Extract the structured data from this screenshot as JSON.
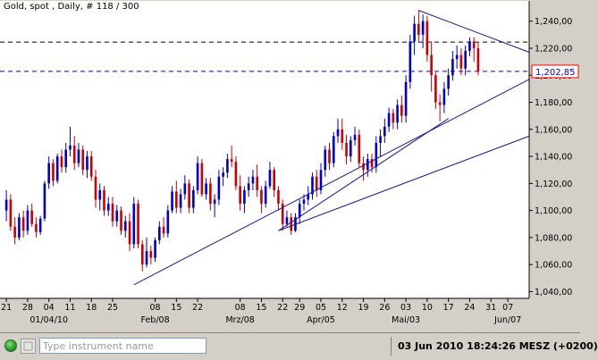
{
  "window": {
    "title": "Gold, spot , Daily, # 118 / 300"
  },
  "chart_data": {
    "type": "candlestick",
    "title": "Gold, spot , Daily, # 118 / 300",
    "ylim": [
      1.035,
      1.255
    ],
    "y_ticks": [
      "1,240,00",
      "1,220,00",
      "1,200,00",
      "1,180,00",
      "1,160,00",
      "1,140,00",
      "1,120,00",
      "1,100,00",
      "1,080,00",
      "1,060,00",
      "1,040,00"
    ],
    "y_tick_values": [
      1.24,
      1.22,
      1.2,
      1.18,
      1.16,
      1.14,
      1.12,
      1.1,
      1.08,
      1.06,
      1.04
    ],
    "x_tick_labels": [
      "21",
      "28",
      "04",
      "11",
      "18",
      "25",
      "08",
      "15",
      "22",
      "08",
      "15",
      "22",
      "29",
      "05",
      "12",
      "19",
      "26",
      "03",
      "10",
      "17",
      "24",
      "31",
      "07"
    ],
    "x_tick_index": [
      0,
      5,
      10,
      15,
      20,
      25,
      35,
      40,
      45,
      55,
      60,
      65,
      69,
      74,
      79,
      84,
      89,
      94,
      99,
      104,
      109,
      114,
      118
    ],
    "x_period_labels": [
      {
        "label": "01/04/10",
        "index": 10
      },
      {
        "label": "Feb/08",
        "index": 35
      },
      {
        "label": "Mrz/08",
        "index": 55
      },
      {
        "label": "Apr/05",
        "index": 74
      },
      {
        "label": "Mai/03",
        "index": 94
      },
      {
        "label": "Jun/07",
        "index": 118
      }
    ],
    "index_range": [
      -1.5,
      123
    ],
    "candles": [
      [
        1.1,
        1.115,
        1.092,
        1.108
      ],
      [
        1.108,
        1.112,
        1.085,
        1.088
      ],
      [
        1.088,
        1.095,
        1.075,
        1.08
      ],
      [
        1.08,
        1.098,
        1.078,
        1.095
      ],
      [
        1.095,
        1.1,
        1.08,
        1.085
      ],
      [
        1.085,
        1.104,
        1.082,
        1.1
      ],
      [
        1.1,
        1.105,
        1.088,
        1.09
      ],
      [
        1.09,
        1.095,
        1.08,
        1.084
      ],
      [
        1.084,
        1.096,
        1.082,
        1.094
      ],
      [
        1.094,
        1.122,
        1.092,
        1.12
      ],
      [
        1.12,
        1.14,
        1.116,
        1.135
      ],
      [
        1.135,
        1.138,
        1.118,
        1.122
      ],
      [
        1.122,
        1.142,
        1.12,
        1.14
      ],
      [
        1.14,
        1.145,
        1.128,
        1.132
      ],
      [
        1.132,
        1.15,
        1.128,
        1.145
      ],
      [
        1.145,
        1.162,
        1.14,
        1.148
      ],
      [
        1.148,
        1.155,
        1.13,
        1.135
      ],
      [
        1.135,
        1.15,
        1.132,
        1.145
      ],
      [
        1.145,
        1.148,
        1.126,
        1.13
      ],
      [
        1.13,
        1.144,
        1.124,
        1.14
      ],
      [
        1.14,
        1.144,
        1.122,
        1.125
      ],
      [
        1.125,
        1.13,
        1.102,
        1.108
      ],
      [
        1.108,
        1.12,
        1.1,
        1.115
      ],
      [
        1.115,
        1.118,
        1.096,
        1.1
      ],
      [
        1.1,
        1.11,
        1.096,
        1.105
      ],
      [
        1.105,
        1.11,
        1.088,
        1.092
      ],
      [
        1.092,
        1.104,
        1.088,
        1.1
      ],
      [
        1.1,
        1.103,
        1.082,
        1.085
      ],
      [
        1.085,
        1.096,
        1.08,
        1.092
      ],
      [
        1.092,
        1.098,
        1.07,
        1.075
      ],
      [
        1.075,
        1.11,
        1.072,
        1.105
      ],
      [
        1.105,
        1.108,
        1.072,
        1.075
      ],
      [
        1.075,
        1.078,
        1.055,
        1.06
      ],
      [
        1.06,
        1.08,
        1.058,
        1.07
      ],
      [
        1.07,
        1.074,
        1.06,
        1.065
      ],
      [
        1.065,
        1.08,
        1.062,
        1.078
      ],
      [
        1.078,
        1.092,
        1.075,
        1.088
      ],
      [
        1.088,
        1.095,
        1.08,
        1.083
      ],
      [
        1.083,
        1.104,
        1.08,
        1.1
      ],
      [
        1.1,
        1.118,
        1.098,
        1.114
      ],
      [
        1.114,
        1.122,
        1.098,
        1.102
      ],
      [
        1.102,
        1.116,
        1.098,
        1.112
      ],
      [
        1.112,
        1.126,
        1.108,
        1.12
      ],
      [
        1.12,
        1.123,
        1.098,
        1.102
      ],
      [
        1.102,
        1.118,
        1.098,
        1.115
      ],
      [
        1.115,
        1.14,
        1.112,
        1.135
      ],
      [
        1.135,
        1.138,
        1.11,
        1.112
      ],
      [
        1.112,
        1.124,
        1.108,
        1.12
      ],
      [
        1.12,
        1.124,
        1.1,
        1.105
      ],
      [
        1.105,
        1.112,
        1.095,
        1.108
      ],
      [
        1.108,
        1.13,
        1.104,
        1.125
      ],
      [
        1.125,
        1.132,
        1.118,
        1.128
      ],
      [
        1.128,
        1.142,
        1.124,
        1.138
      ],
      [
        1.138,
        1.148,
        1.132,
        1.136
      ],
      [
        1.136,
        1.14,
        1.115,
        1.118
      ],
      [
        1.118,
        1.126,
        1.1,
        1.105
      ],
      [
        1.105,
        1.118,
        1.098,
        1.115
      ],
      [
        1.115,
        1.125,
        1.11,
        1.12
      ],
      [
        1.12,
        1.13,
        1.115,
        1.125
      ],
      [
        1.125,
        1.134,
        1.11,
        1.115
      ],
      [
        1.115,
        1.118,
        1.098,
        1.105
      ],
      [
        1.105,
        1.122,
        1.102,
        1.118
      ],
      [
        1.118,
        1.136,
        1.116,
        1.13
      ],
      [
        1.13,
        1.132,
        1.11,
        1.115
      ],
      [
        1.115,
        1.118,
        1.1,
        1.105
      ],
      [
        1.105,
        1.108,
        1.085,
        1.09
      ],
      [
        1.09,
        1.1,
        1.088,
        1.095
      ],
      [
        1.095,
        1.098,
        1.082,
        1.085
      ],
      [
        1.085,
        1.098,
        1.084,
        1.095
      ],
      [
        1.095,
        1.108,
        1.09,
        1.105
      ],
      [
        1.105,
        1.112,
        1.1,
        1.108
      ],
      [
        1.108,
        1.118,
        1.104,
        1.112
      ],
      [
        1.112,
        1.128,
        1.108,
        1.125
      ],
      [
        1.125,
        1.13,
        1.11,
        1.115
      ],
      [
        1.115,
        1.135,
        1.112,
        1.13
      ],
      [
        1.13,
        1.148,
        1.125,
        1.145
      ],
      [
        1.145,
        1.15,
        1.13,
        1.135
      ],
      [
        1.135,
        1.158,
        1.132,
        1.155
      ],
      [
        1.155,
        1.168,
        1.15,
        1.16
      ],
      [
        1.16,
        1.168,
        1.145,
        1.15
      ],
      [
        1.15,
        1.156,
        1.134,
        1.14
      ],
      [
        1.14,
        1.155,
        1.136,
        1.152
      ],
      [
        1.152,
        1.162,
        1.148,
        1.156
      ],
      [
        1.156,
        1.16,
        1.132,
        1.135
      ],
      [
        1.135,
        1.14,
        1.122,
        1.13
      ],
      [
        1.13,
        1.142,
        1.125,
        1.138
      ],
      [
        1.138,
        1.142,
        1.128,
        1.132
      ],
      [
        1.132,
        1.155,
        1.128,
        1.15
      ],
      [
        1.15,
        1.16,
        1.14,
        1.155
      ],
      [
        1.155,
        1.168,
        1.15,
        1.162
      ],
      [
        1.162,
        1.176,
        1.158,
        1.172
      ],
      [
        1.172,
        1.175,
        1.16,
        1.165
      ],
      [
        1.165,
        1.182,
        1.16,
        1.178
      ],
      [
        1.178,
        1.185,
        1.165,
        1.17
      ],
      [
        1.17,
        1.2,
        1.165,
        1.195
      ],
      [
        1.195,
        1.23,
        1.19,
        1.225
      ],
      [
        1.225,
        1.244,
        1.215,
        1.238
      ],
      [
        1.238,
        1.248,
        1.225,
        1.23
      ],
      [
        1.23,
        1.245,
        1.22,
        1.24
      ],
      [
        1.24,
        1.244,
        1.21,
        1.215
      ],
      [
        1.215,
        1.225,
        1.188,
        1.2
      ],
      [
        1.2,
        1.202,
        1.175,
        1.18
      ],
      [
        1.18,
        1.186,
        1.166,
        1.178
      ],
      [
        1.178,
        1.195,
        1.172,
        1.19
      ],
      [
        1.19,
        1.205,
        1.185,
        1.2
      ],
      [
        1.2,
        1.218,
        1.196,
        1.212
      ],
      [
        1.212,
        1.222,
        1.205,
        1.215
      ],
      [
        1.215,
        1.22,
        1.2,
        1.205
      ],
      [
        1.205,
        1.222,
        1.2,
        1.218
      ],
      [
        1.218,
        1.228,
        1.214,
        1.225
      ],
      [
        1.225,
        1.228,
        1.21,
        1.22
      ],
      [
        1.22,
        1.224,
        1.2,
        1.203
      ]
    ],
    "horizontal_lines": [
      {
        "value": 1.2245,
        "style": "dashed",
        "color": "#000000"
      },
      {
        "value": 1.20285,
        "style": "dashed",
        "color": "#0000cc",
        "label": "1,202,85"
      }
    ],
    "trendlines": [
      {
        "from": [
          30,
          1.045
        ],
        "to": [
          123,
          1.197
        ]
      },
      {
        "from": [
          64,
          1.085
        ],
        "to": [
          123,
          1.155
        ]
      },
      {
        "from": [
          64,
          1.085
        ],
        "to": [
          104,
          1.168
        ]
      },
      {
        "from": [
          97,
          1.248
        ],
        "to": [
          123,
          1.217
        ]
      }
    ],
    "colors": {
      "background": "#ffffff",
      "up_candle": "#0000cc",
      "down_candle": "#cc0000",
      "grid": "#000000",
      "trendline": "#1a1a8c",
      "price_label_border": "#ff0000",
      "price_label_text": "#0000cc"
    }
  },
  "bottom_bar": {
    "search_placeholder": "Type instrument name",
    "datetime": "03 Jun 2010 18:24:26  MESZ (+0200)",
    "icons": [
      "status-connected-icon",
      "gear-icon"
    ]
  }
}
